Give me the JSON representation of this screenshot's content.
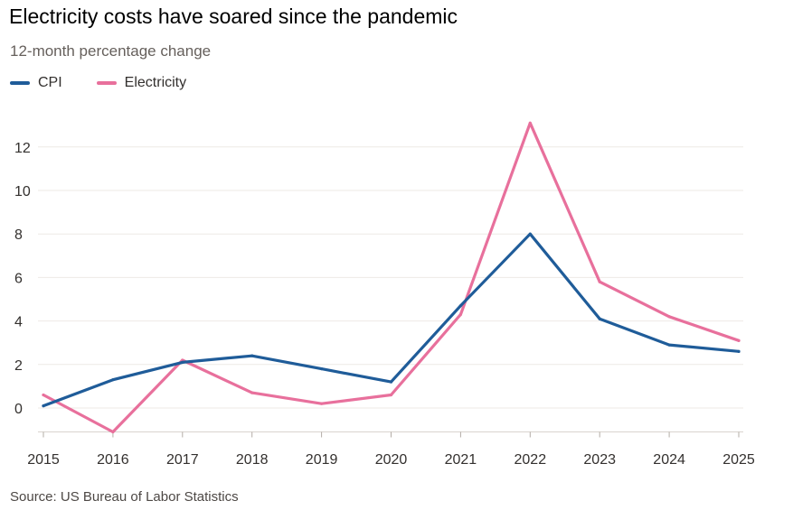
{
  "title": "Electricity costs have soared since the pandemic",
  "subtitle": "12-month percentage change",
  "source": "Source: US Bureau of Labor Statistics",
  "legend": [
    {
      "label": "CPI",
      "color": "#1f5c99"
    },
    {
      "label": "Electricity",
      "color": "#e8709c"
    }
  ],
  "chart_data": {
    "type": "line",
    "title": "Electricity costs have soared since the pandemic",
    "subtitle": "12-month percentage change",
    "x": [
      "2015",
      "2016",
      "2017",
      "2018",
      "2019",
      "2020",
      "2021",
      "2022",
      "2023",
      "2024",
      "2025"
    ],
    "series": [
      {
        "name": "CPI",
        "color": "#1f5c99",
        "values": [
          0.1,
          1.3,
          2.1,
          2.4,
          1.8,
          1.2,
          4.7,
          8.0,
          4.1,
          2.9,
          2.6
        ]
      },
      {
        "name": "Electricity",
        "color": "#e8709c",
        "values": [
          0.6,
          -1.1,
          2.2,
          0.7,
          0.2,
          0.6,
          4.3,
          13.1,
          5.8,
          4.2,
          3.1
        ]
      }
    ],
    "yticks": [
      0,
      2,
      4,
      6,
      8,
      10,
      12
    ],
    "ylim": [
      -1.1,
      13.4
    ],
    "xlabel": "",
    "ylabel": "",
    "grid": true,
    "legend_position": "top-left"
  }
}
